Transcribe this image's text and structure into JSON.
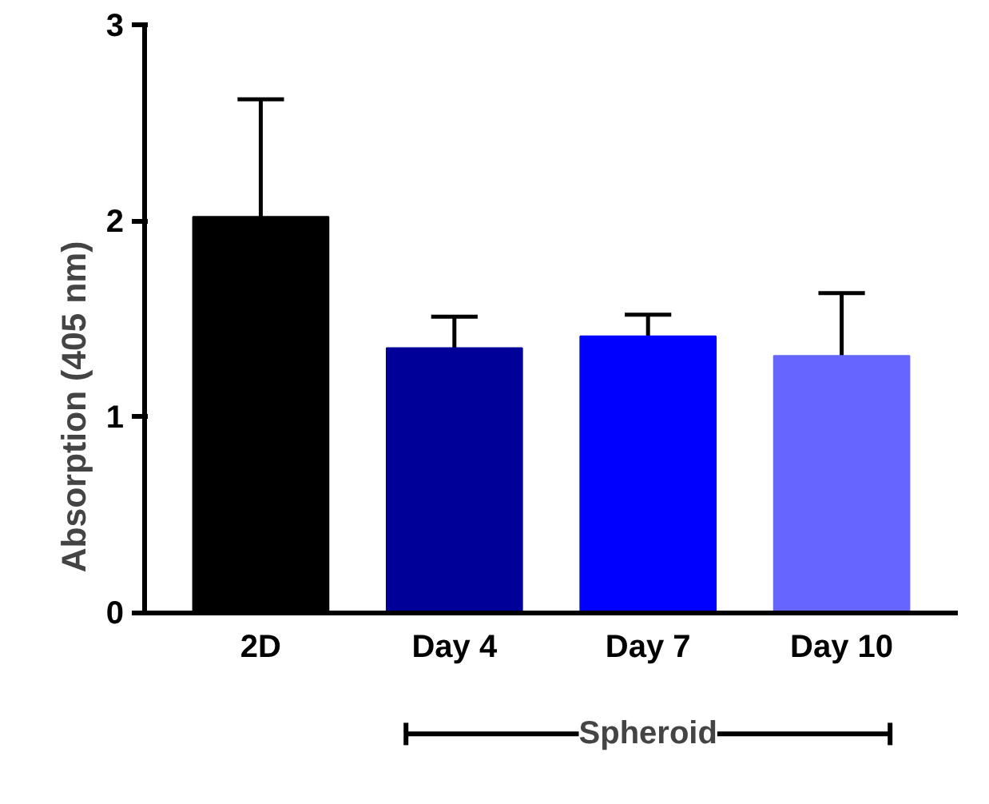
{
  "chart_data": {
    "type": "bar",
    "ylabel": "Absorption (405 nm)",
    "categories": [
      "2D",
      "Day 4",
      "Day 7",
      "Day 10"
    ],
    "values": [
      2.02,
      1.35,
      1.41,
      1.31
    ],
    "colors": [
      "#000000",
      "#000099",
      "#0000ff",
      "#6666ff"
    ],
    "errors": [
      [
        2.02,
        2.62
      ],
      [
        1.35,
        1.51
      ],
      [
        1.41,
        1.52
      ],
      [
        1.31,
        1.63
      ]
    ],
    "ylim": [
      0,
      3
    ],
    "yticks": [
      0,
      1,
      2,
      3
    ],
    "grid": false,
    "annotations": [
      "Spheroid"
    ]
  }
}
